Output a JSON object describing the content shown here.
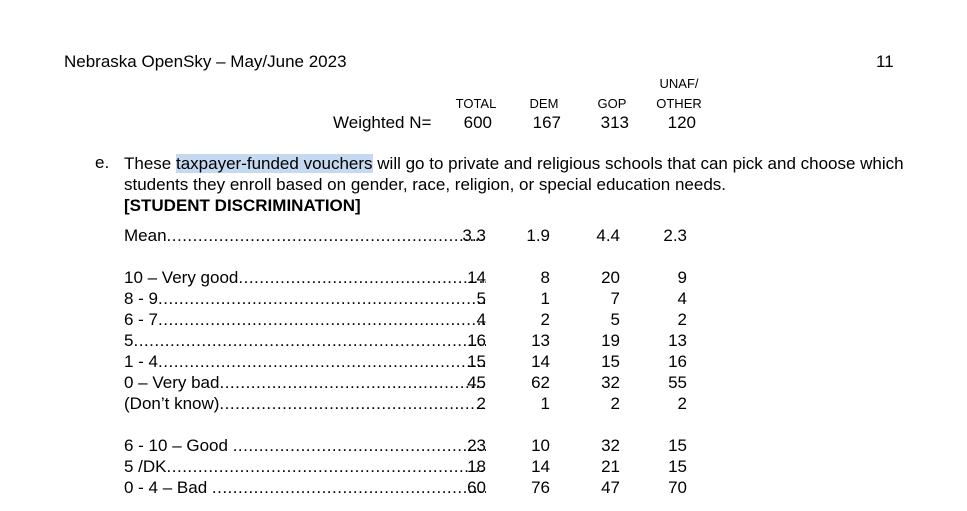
{
  "header": {
    "title": "Nebraska OpenSky – May/June 2023",
    "page": "11"
  },
  "columns": {
    "total": "TOTAL",
    "dem": "DEM",
    "gop": "GOP",
    "unaf_line1": "UNAF/",
    "unaf_line2": "OTHER"
  },
  "weighted": {
    "label": "Weighted N=",
    "values": [
      "600",
      "167",
      "313",
      "120"
    ]
  },
  "question": {
    "letter": "e.",
    "text_pre": "These ",
    "text_highlight": "taxpayer-funded vouchers",
    "text_post": " will go to private and religious schools that can pick and choose which students they enroll based on gender, race, religion, or special education needs.",
    "tag": "[STUDENT DISCRIMINATION]"
  },
  "rows": [
    {
      "label": "Mean",
      "values": [
        "3.3",
        "1.9",
        "4.4",
        "2.3"
      ]
    },
    {
      "label": "10 – Very good",
      "values": [
        "14",
        "8",
        "20",
        "9"
      ]
    },
    {
      "label": "8 - 9",
      "values": [
        "5",
        "1",
        "7",
        "4"
      ]
    },
    {
      "label": "6 - 7",
      "values": [
        "4",
        "2",
        "5",
        "2"
      ]
    },
    {
      "label": "5",
      "values": [
        "16",
        "13",
        "19",
        "13"
      ]
    },
    {
      "label": "1 - 4",
      "values": [
        "15",
        "14",
        "15",
        "16"
      ]
    },
    {
      "label": "0 – Very bad",
      "values": [
        "45",
        "62",
        "32",
        "55"
      ]
    },
    {
      "label": "(Don’t know)",
      "values": [
        "2",
        "1",
        "2",
        "2"
      ]
    },
    {
      "label": "6 - 10 – Good ",
      "values": [
        "23",
        "10",
        "32",
        "15"
      ]
    },
    {
      "label": "5 /DK",
      "values": [
        "18",
        "14",
        "21",
        "15"
      ]
    },
    {
      "label": "0 - 4 – Bad ",
      "values": [
        "60",
        "76",
        "47",
        "70"
      ]
    }
  ],
  "colors": {
    "highlight": "#c5d9f1"
  }
}
